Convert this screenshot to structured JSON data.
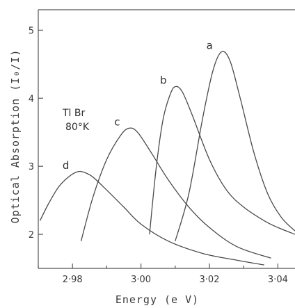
{
  "chart_data": {
    "type": "line",
    "xlabel": "Energy (e V)",
    "ylabel": "Optical Absorption (I₀/I)",
    "xlim": [
      2.97,
      3.045
    ],
    "ylim": [
      1.5,
      5.3
    ],
    "x_ticks": [
      2.98,
      3.0,
      3.02,
      3.04
    ],
    "x_tick_labels": [
      "2·98",
      "3·00",
      "3·02",
      "3·04"
    ],
    "y_ticks": [
      2,
      3,
      4,
      5
    ],
    "y_tick_labels": [
      "2",
      "3",
      "4",
      "5"
    ],
    "grid": false,
    "annotations": [
      {
        "text": "Tl Br",
        "x": 2.9815,
        "y": 4.15
      },
      {
        "text": "80°K",
        "x": 2.9825,
        "y": 3.95
      }
    ],
    "series": [
      {
        "name": "a",
        "x": [
          3.01,
          3.014,
          3.018,
          3.021,
          3.0235,
          3.026,
          3.029,
          3.033,
          3.037,
          3.041,
          3.045
        ],
        "y": [
          1.9,
          2.6,
          3.7,
          4.4,
          4.68,
          4.55,
          4.0,
          3.2,
          2.6,
          2.25,
          2.05
        ]
      },
      {
        "name": "b",
        "x": [
          3.0025,
          3.0045,
          3.0065,
          3.0085,
          3.01,
          3.012,
          3.015,
          3.02,
          3.025,
          3.03,
          3.036,
          3.04,
          3.045
        ],
        "y": [
          2.0,
          3.0,
          3.7,
          4.05,
          4.17,
          4.1,
          3.75,
          3.1,
          2.65,
          2.4,
          2.2,
          2.1,
          2.0
        ]
      },
      {
        "name": "c",
        "x": [
          2.9825,
          2.986,
          2.99,
          2.994,
          2.9965,
          2.999,
          3.003,
          3.008,
          3.014,
          3.02,
          3.028,
          3.038
        ],
        "y": [
          1.9,
          2.55,
          3.1,
          3.45,
          3.56,
          3.5,
          3.2,
          2.8,
          2.4,
          2.1,
          1.82,
          1.65
        ]
      },
      {
        "name": "d",
        "x": [
          2.9705,
          2.973,
          2.976,
          2.979,
          2.9815,
          2.9835,
          2.986,
          2.99,
          2.995,
          3.0,
          3.008,
          3.018,
          3.028,
          3.036
        ],
        "y": [
          2.2,
          2.45,
          2.7,
          2.85,
          2.92,
          2.91,
          2.84,
          2.65,
          2.4,
          2.15,
          1.9,
          1.72,
          1.62,
          1.55
        ]
      }
    ]
  }
}
